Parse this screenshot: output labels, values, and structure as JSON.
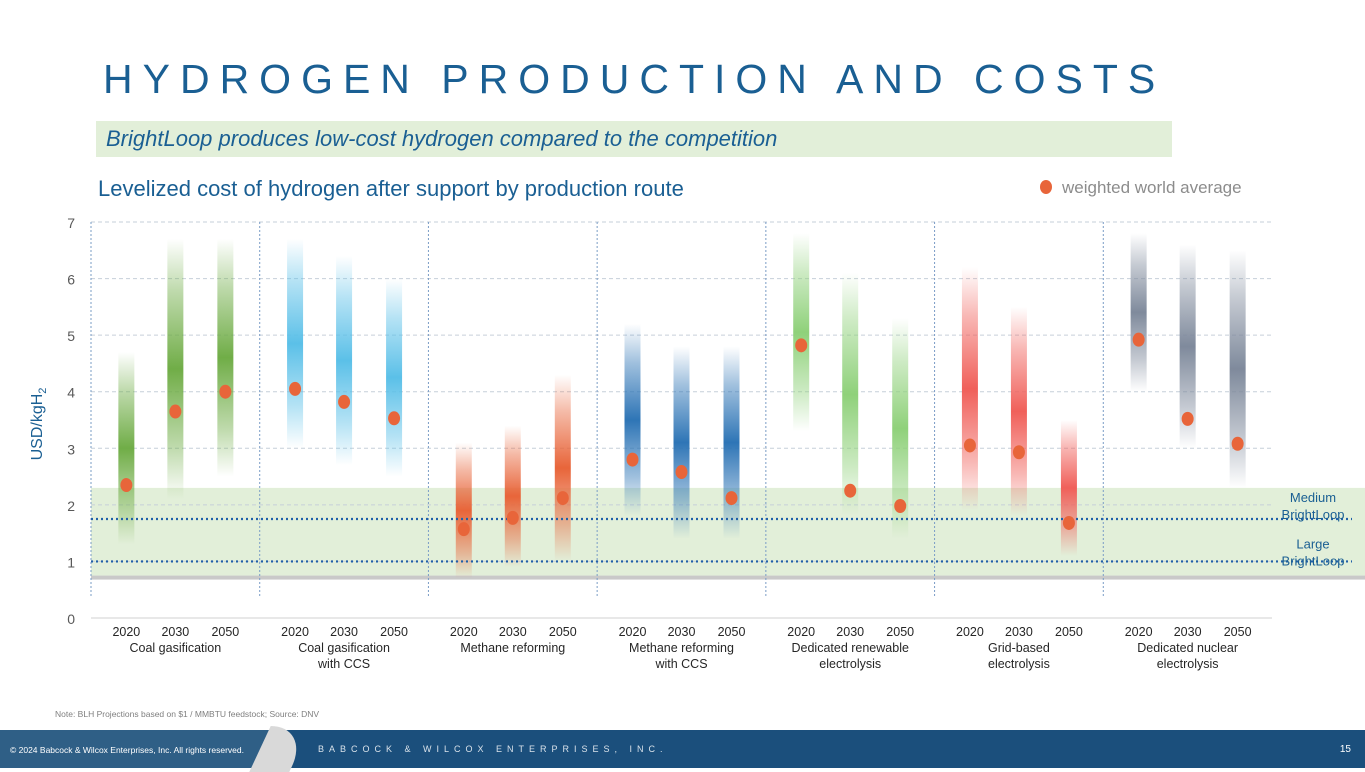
{
  "slide": {
    "title": "HYDROGEN PRODUCTION AND COSTS",
    "subtitle": "BrightLoop produces low-cost hydrogen compared to the competition",
    "chart_title": "Levelized cost of hydrogen after support by production route",
    "legend_label": "weighted world average",
    "note": "Note: BLH Projections based on $1 / MMBTU feedstock; Source: DNV",
    "footer_copyright": "© 2024 Babcock & Wilcox Enterprises, Inc. All rights reserved.",
    "footer_company": "BABCOCK & WILCOX ENTERPRISES, INC.",
    "page_number": "15"
  },
  "chart_data": {
    "type": "range-dot",
    "title": "Levelized cost of hydrogen after support by production route",
    "ylabel": "USD/kgH2",
    "ylabel_main": "USD/kgH",
    "ylabel_sub": "2",
    "ylim": [
      0,
      7
    ],
    "yticks": [
      "0",
      "1",
      "2",
      "3",
      "4",
      "5",
      "6",
      "7"
    ],
    "years": [
      "2020",
      "2030",
      "2050"
    ],
    "legend": "weighted world average",
    "groups": [
      {
        "name": "Coal gasification",
        "lines": [
          "Coal gasification"
        ],
        "color": "#70ad47",
        "bars": [
          {
            "low": 1.3,
            "high": 4.7,
            "avg": 2.35
          },
          {
            "low": 2.1,
            "high": 6.7,
            "avg": 3.65
          },
          {
            "low": 2.5,
            "high": 6.7,
            "avg": 4.0
          }
        ]
      },
      {
        "name": "Coal gasification with CCS",
        "lines": [
          "Coal gasification",
          "with CCS"
        ],
        "color": "#5bc0e8",
        "bars": [
          {
            "low": 3.0,
            "high": 6.7,
            "avg": 4.05
          },
          {
            "low": 2.7,
            "high": 6.4,
            "avg": 3.82
          },
          {
            "low": 2.5,
            "high": 6.0,
            "avg": 3.53
          }
        ]
      },
      {
        "name": "Methane reforming",
        "lines": [
          "Methane reforming"
        ],
        "color": "#e8653a",
        "bars": [
          {
            "low": 0.7,
            "high": 3.1,
            "avg": 1.57
          },
          {
            "low": 0.9,
            "high": 3.4,
            "avg": 1.77
          },
          {
            "low": 1.0,
            "high": 4.3,
            "avg": 2.12
          }
        ]
      },
      {
        "name": "Methane reforming with CCS",
        "lines": [
          "Methane reforming",
          "with CCS"
        ],
        "color": "#2e75b6",
        "bars": [
          {
            "low": 1.8,
            "high": 5.2,
            "avg": 2.8
          },
          {
            "low": 1.4,
            "high": 4.8,
            "avg": 2.58
          },
          {
            "low": 1.4,
            "high": 4.8,
            "avg": 2.12
          }
        ]
      },
      {
        "name": "Dedicated renewable electrolysis",
        "lines": [
          "Dedicated renewable",
          "electrolysis"
        ],
        "color": "#8fd17a",
        "bars": [
          {
            "low": 3.3,
            "high": 6.8,
            "avg": 4.82
          },
          {
            "low": 1.8,
            "high": 6.1,
            "avg": 2.25
          },
          {
            "low": 1.4,
            "high": 5.3,
            "avg": 1.98
          }
        ]
      },
      {
        "name": "Grid-based electrolysis",
        "lines": [
          "Grid-based",
          "electrolysis"
        ],
        "color": "#f0605a",
        "bars": [
          {
            "low": 1.9,
            "high": 6.2,
            "avg": 3.05
          },
          {
            "low": 1.8,
            "high": 5.5,
            "avg": 2.93
          },
          {
            "low": 1.1,
            "high": 3.5,
            "avg": 1.68
          }
        ]
      },
      {
        "name": "Dedicated nuclear electrolysis",
        "lines": [
          "Dedicated nuclear",
          "electrolysis"
        ],
        "color": "#7f8a9c",
        "bars": [
          {
            "low": 4.0,
            "high": 6.8,
            "avg": 4.92
          },
          {
            "low": 3.0,
            "high": 6.6,
            "avg": 3.52
          },
          {
            "low": 2.3,
            "high": 6.5,
            "avg": 3.08
          }
        ]
      }
    ],
    "reference_lines": [
      {
        "value": 1.75,
        "lines": [
          "Medium",
          "BrightLoop"
        ]
      },
      {
        "value": 1.0,
        "lines": [
          "Large",
          "BrightLoop"
        ]
      }
    ],
    "shaded_band": [
      0.75,
      2.3
    ]
  }
}
